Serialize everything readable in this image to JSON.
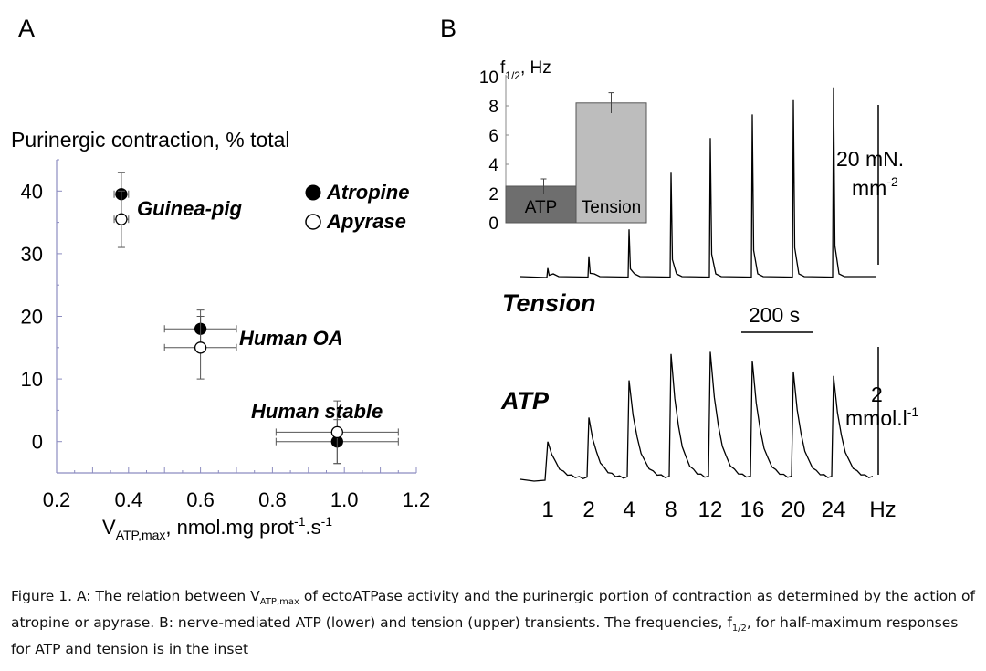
{
  "panel_labels": {
    "a": "A",
    "b": "B"
  },
  "caption": {
    "t1": "Figure 1. A: The relation between V",
    "sub1": "ATP,max",
    "t2": " of ectoATPase activity and the purinergic portion of contraction as determined by the action of atropine or apyrase.  B: nerve-mediated ATP (lower) and tension (upper) transients. The frequencies, f",
    "sub2": "1/2",
    "t3": ", for half-maximum responses for ATP and tension is in the inset"
  },
  "chart_data": [
    {
      "type": "scatter",
      "panel": "A",
      "ylabel": "Purinergic contraction, % total",
      "xlabel_main": "V",
      "xlabel_sub": "ATP,max",
      "xlabel_rest": ", nmol.mg prot",
      "xlabel_sup1": "-1",
      "xlabel_mid": ".s",
      "xlabel_sup2": "-1",
      "xlim": [
        0.2,
        1.2
      ],
      "ylim": [
        -5,
        45
      ],
      "xticks": [
        "0.2",
        "0.4",
        "0.6",
        "0.8",
        "1.0",
        "1.2"
      ],
      "xtick_values": [
        0.2,
        0.4,
        0.6,
        0.8,
        1.0,
        1.2
      ],
      "yticks": [
        "0",
        "10",
        "20",
        "30",
        "40"
      ],
      "ytick_values": [
        0,
        10,
        20,
        30,
        40
      ],
      "legend": [
        {
          "name": "Atropine",
          "marker": "filled"
        },
        {
          "name": "Apyrase",
          "marker": "open"
        }
      ],
      "series": [
        {
          "name": "Atropine",
          "marker": "filled",
          "points": [
            {
              "label": "Guinea-pig",
              "x": 0.38,
              "y": 39.5,
              "xerr": 0.02,
              "yerr": 3.5
            },
            {
              "label": "Human OA",
              "x": 0.6,
              "y": 18,
              "xerr": 0.1,
              "yerr": 3
            },
            {
              "label": "Human stable",
              "x": 0.98,
              "y": 0,
              "xerr": 0.17,
              "yerr": 3.5
            }
          ]
        },
        {
          "name": "Apyrase",
          "marker": "open",
          "points": [
            {
              "label": "Guinea-pig",
              "x": 0.38,
              "y": 35.5,
              "xerr": 0.02,
              "yerr": 4.5
            },
            {
              "label": "Human OA",
              "x": 0.6,
              "y": 15,
              "xerr": 0.1,
              "yerr": 5
            },
            {
              "label": "Human stable",
              "x": 0.98,
              "y": 1.5,
              "xerr": 0.17,
              "yerr": 5
            }
          ]
        }
      ],
      "annotations": [
        "Guinea-pig",
        "Human OA",
        "Human stable"
      ]
    },
    {
      "type": "line",
      "panel": "B",
      "traces": [
        {
          "name": "Tension",
          "peaks": [
            0.5,
            1.2,
            2.8,
            6.2,
            8.2,
            9.6,
            10.5,
            11.2
          ]
        },
        {
          "name": "ATP",
          "peaks": [
            1.8,
            2.9,
            4.6,
            5.8,
            5.9,
            5.5,
            5.0,
            4.8
          ]
        }
      ],
      "frequencies": [
        "1",
        "2",
        "4",
        "8",
        "12",
        "16",
        "20",
        "24"
      ],
      "frequency_unit": "Hz",
      "scale_time": "200 s",
      "scale_tension_line1": "20 mN.",
      "scale_tension_line2": "mm",
      "scale_tension_sup": "-2",
      "scale_atp_line1": "2",
      "scale_atp_line2": "mmol.l",
      "scale_atp_sup": "-1"
    },
    {
      "type": "bar",
      "panel": "B-inset",
      "ylabel_main": "f",
      "ylabel_sub": "1/2",
      "ylabel_rest": ", Hz",
      "categories": [
        "ATP",
        "Tension"
      ],
      "values": [
        2.5,
        8.2
      ],
      "errors": [
        0.5,
        0.7
      ],
      "colors": [
        "#6e6e6e",
        "#bdbdbd"
      ],
      "ylim": [
        0,
        10
      ],
      "yticks": [
        "0",
        "2",
        "4",
        "6",
        "8",
        "10"
      ],
      "ytick_values": [
        0,
        2,
        4,
        6,
        8,
        10
      ]
    }
  ]
}
